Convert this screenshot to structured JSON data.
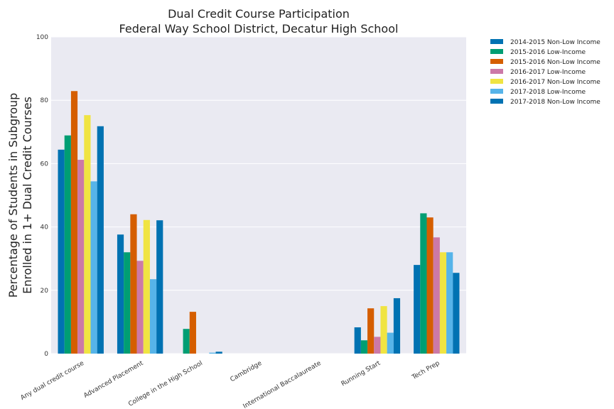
{
  "chart_data": {
    "type": "bar",
    "title": "Dual Credit Course Participation",
    "subtitle": "Federal Way School District, Decatur High School",
    "ylabel_line1": "Percentage of Students in Subgroup",
    "ylabel_line2": "Enrolled in 1+ Dual Credit Courses",
    "xlabel": "",
    "ylim": [
      0,
      100
    ],
    "yticks": [
      "0",
      "20",
      "40",
      "60",
      "80",
      "100"
    ],
    "grid": true,
    "legend_position": "outside-top-right",
    "categories": [
      "Any dual credit course",
      "Advanced Placement",
      "College in the High School",
      "Cambridge",
      "International Baccalaureate",
      "Running Start",
      "Tech Prep"
    ],
    "series": [
      {
        "name": "2014-2015 Non-Low Income",
        "color": "#0072b2",
        "values": [
          64.4,
          37.6,
          0,
          0,
          0,
          8.3,
          28.0
        ]
      },
      {
        "name": "2015-2016 Low-Income",
        "color": "#009e73",
        "values": [
          68.9,
          32.0,
          7.8,
          0,
          0,
          4.2,
          44.3
        ]
      },
      {
        "name": "2015-2016 Non-Low Income",
        "color": "#d55e00",
        "values": [
          82.9,
          44.0,
          13.2,
          0,
          0,
          14.3,
          43.0
        ]
      },
      {
        "name": "2016-2017 Low-Income",
        "color": "#cc79a7",
        "values": [
          61.2,
          29.3,
          0,
          0,
          0,
          5.3,
          36.7
        ]
      },
      {
        "name": "2016-2017 Non-Low Income",
        "color": "#f0e442",
        "values": [
          75.3,
          42.2,
          0,
          0,
          0,
          15.0,
          32.0
        ]
      },
      {
        "name": "2017-2018 Low-Income",
        "color": "#56b4e9",
        "values": [
          54.4,
          23.5,
          0.3,
          0,
          0,
          6.6,
          32.0
        ]
      },
      {
        "name": "2017-2018 Non-Low Income",
        "color": "#0072b2",
        "values": [
          71.8,
          42.1,
          0.6,
          0,
          0,
          17.5,
          25.5
        ]
      }
    ]
  }
}
